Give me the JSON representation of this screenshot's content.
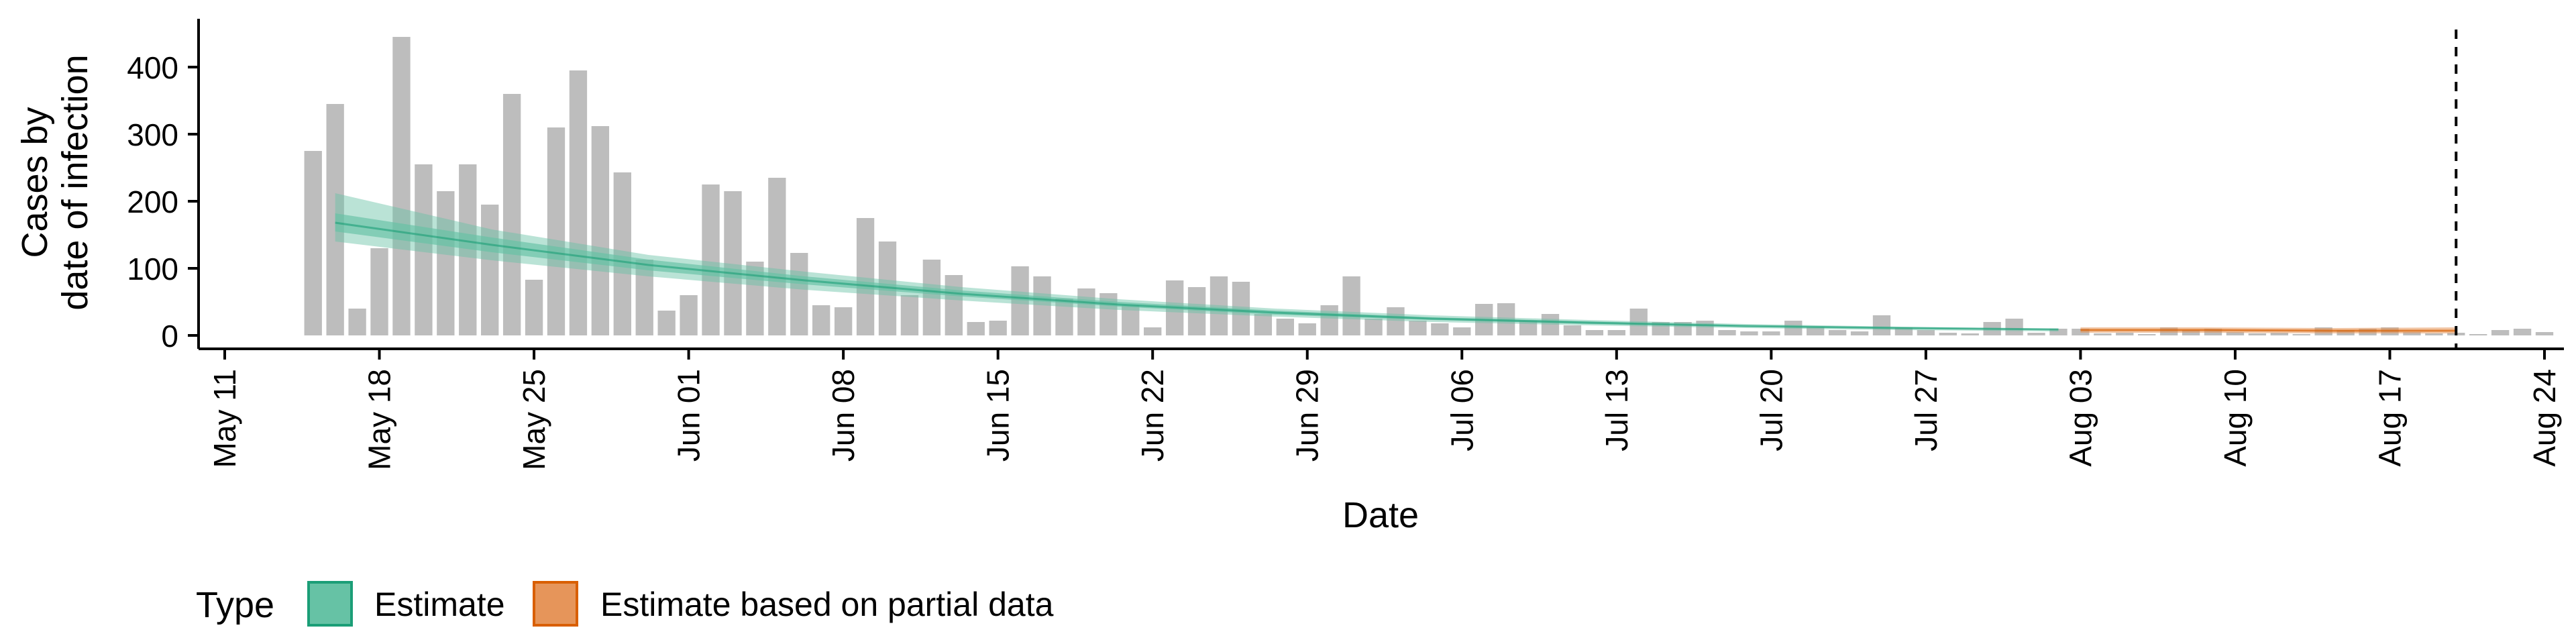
{
  "chart_data": {
    "type": "bar",
    "xlabel": "Date",
    "ylabel_lines": [
      "Cases by",
      "date of infection"
    ],
    "x_ticks": [
      "May 11",
      "May 18",
      "May 25",
      "Jun 01",
      "Jun 08",
      "Jun 15",
      "Jun 22",
      "Jun 29",
      "Jul 06",
      "Jul 13",
      "Jul 20",
      "Jul 27",
      "Aug 03",
      "Aug 10",
      "Aug 17",
      "Aug 24"
    ],
    "x_tick_dates": [
      "2020-05-11",
      "2020-05-18",
      "2020-05-25",
      "2020-06-01",
      "2020-06-08",
      "2020-06-15",
      "2020-06-22",
      "2020-06-29",
      "2020-07-06",
      "2020-07-13",
      "2020-07-20",
      "2020-07-27",
      "2020-08-03",
      "2020-08-10",
      "2020-08-17",
      "2020-08-24"
    ],
    "xlim": [
      "2020-05-11",
      "2020-08-24"
    ],
    "y_ticks": [
      0,
      100,
      200,
      300,
      400
    ],
    "ylim": [
      0,
      450
    ],
    "grid": false,
    "start_date": "2020-05-15",
    "bars": {
      "name": "Reported cases",
      "color": "#bdbdbd",
      "values": [
        275,
        345,
        40,
        130,
        445,
        255,
        215,
        255,
        195,
        360,
        83,
        310,
        395,
        312,
        243,
        113,
        37,
        60,
        225,
        215,
        110,
        235,
        123,
        45,
        42,
        175,
        140,
        60,
        113,
        90,
        20,
        22,
        103,
        88,
        55,
        70,
        63,
        45,
        12,
        82,
        72,
        88,
        80,
        32,
        25,
        18,
        45,
        88,
        25,
        42,
        22,
        18,
        12,
        47,
        48,
        22,
        32,
        15,
        8,
        8,
        40,
        20,
        20,
        22,
        8,
        6,
        6,
        22,
        12,
        8,
        6,
        30,
        12,
        8,
        4,
        3,
        20,
        25,
        4,
        10,
        10,
        3,
        4,
        2,
        12,
        8,
        10,
        5,
        3,
        4,
        2,
        12,
        8,
        10,
        12,
        5,
        3,
        4,
        2,
        8,
        10,
        5
      ]
    },
    "estimate": {
      "name": "Estimate",
      "color": "#1b9e77",
      "fill": "#66c2a5",
      "date_range": [
        "2020-05-16",
        "2020-08-02"
      ],
      "median": [
        168,
        135,
        105,
        82,
        62,
        46,
        34,
        25,
        19,
        14,
        11,
        9
      ],
      "lower_90": [
        140,
        112,
        88,
        68,
        52,
        38,
        28,
        20,
        15,
        11,
        8,
        6
      ],
      "upper_90": [
        212,
        158,
        120,
        95,
        72,
        54,
        40,
        30,
        23,
        17,
        13,
        10
      ],
      "lower_50": [
        155,
        124,
        97,
        76,
        58,
        43,
        31,
        23,
        17,
        13,
        10,
        8
      ],
      "upper_50": [
        182,
        146,
        113,
        88,
        67,
        50,
        37,
        27,
        21,
        15,
        12,
        9
      ]
    },
    "partial": {
      "name": "Estimate based on partial data",
      "color": "#d95f02",
      "fill": "#e6955a",
      "date_range": [
        "2020-08-03",
        "2020-08-20"
      ],
      "median": [
        8,
        8,
        7,
        7
      ],
      "lower_90": [
        4,
        4,
        3,
        3
      ],
      "upper_90": [
        12,
        12,
        11,
        12
      ]
    },
    "vline_date": "2020-08-20",
    "legend": {
      "title": "Type",
      "position": "bottom",
      "entries": [
        {
          "label": "Estimate",
          "fill": "#66c2a5",
          "stroke": "#1b9e77"
        },
        {
          "label": "Estimate based on partial data",
          "fill": "#e6955a",
          "stroke": "#d95f02"
        }
      ]
    }
  }
}
